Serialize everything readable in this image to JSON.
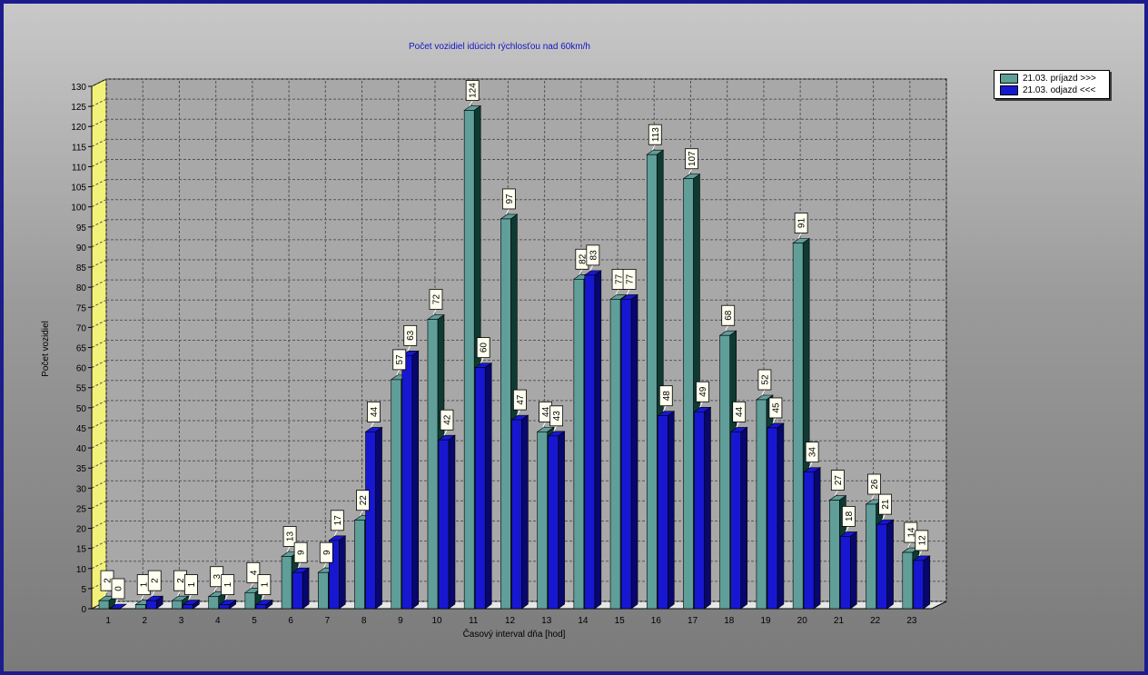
{
  "chart_data": {
    "type": "bar",
    "title": "Počet vozidiel idúcich rýchlosťou nad 60km/h",
    "xlabel": "Časový interval dňa [hod]",
    "ylabel": "Počet vozidiel",
    "ylim": [
      0,
      130
    ],
    "yticks": [
      0,
      5,
      10,
      15,
      20,
      25,
      30,
      35,
      40,
      45,
      50,
      55,
      60,
      65,
      70,
      75,
      80,
      85,
      90,
      95,
      100,
      105,
      110,
      115,
      120,
      125,
      130
    ],
    "grid": true,
    "legend_position": "top-right",
    "categories": [
      "1",
      "2",
      "3",
      "4",
      "5",
      "6",
      "7",
      "8",
      "9",
      "10",
      "11",
      "12",
      "13",
      "14",
      "15",
      "16",
      "17",
      "18",
      "19",
      "20",
      "21",
      "22",
      "23"
    ],
    "series": [
      {
        "name": "21.03. príjazd >>>",
        "color": "#5f9e99",
        "side_color": "#0e3a32",
        "values": [
          2,
          1,
          2,
          3,
          4,
          13,
          9,
          22,
          57,
          72,
          124,
          97,
          44,
          82,
          77,
          113,
          107,
          68,
          52,
          91,
          27,
          26,
          14
        ],
        "labels": [
          "2",
          "1",
          "2",
          "3",
          "4",
          "13",
          "9",
          "22",
          "57",
          "72",
          "124",
          "97",
          "44",
          "82",
          "77",
          "113",
          "107",
          "68",
          "52",
          "91",
          "27",
          "26",
          "14"
        ]
      },
      {
        "name": "21.03. odjazd <<<",
        "color": "#1717d2",
        "side_color": "#07076e",
        "values": [
          0,
          2,
          1,
          1,
          1,
          9,
          17,
          44,
          63,
          42,
          60,
          47,
          43,
          83,
          77,
          48,
          49,
          44,
          45,
          34,
          18,
          21,
          12
        ],
        "labels": [
          "0",
          "2",
          "1",
          "1",
          "1",
          "9",
          "17",
          "44",
          "63",
          "42",
          "60",
          "47",
          "43",
          "83",
          "77",
          "48",
          "49",
          "44",
          "45",
          "34",
          "18",
          "21",
          "12"
        ]
      }
    ]
  }
}
